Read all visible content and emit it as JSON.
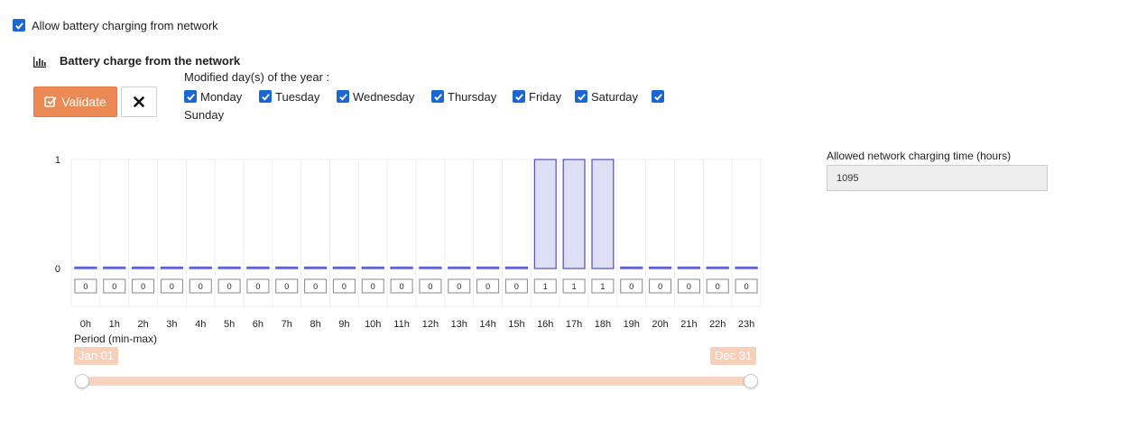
{
  "allow_charging": {
    "label": "Allow battery charging from network",
    "checked": true
  },
  "section": {
    "title": "Battery charge from the network",
    "icon": "bar-chart-icon"
  },
  "toolbar": {
    "validate_label": "Validate",
    "validate_icon": "check-square-icon",
    "cancel_icon": "close-icon"
  },
  "days": {
    "title": "Modified day(s) of the year :",
    "items": [
      {
        "label": "Monday",
        "checked": true
      },
      {
        "label": "Tuesday",
        "checked": true
      },
      {
        "label": "Wednesday",
        "checked": true
      },
      {
        "label": "Thursday",
        "checked": true
      },
      {
        "label": "Friday",
        "checked": true
      },
      {
        "label": "Saturday",
        "checked": true
      },
      {
        "label": "Sunday",
        "checked": true
      }
    ]
  },
  "chart_data": {
    "type": "bar",
    "categories": [
      "0h",
      "1h",
      "2h",
      "3h",
      "4h",
      "5h",
      "6h",
      "7h",
      "8h",
      "9h",
      "10h",
      "11h",
      "12h",
      "13h",
      "14h",
      "15h",
      "16h",
      "17h",
      "18h",
      "19h",
      "20h",
      "21h",
      "22h",
      "23h"
    ],
    "values": [
      0,
      0,
      0,
      0,
      0,
      0,
      0,
      0,
      0,
      0,
      0,
      0,
      0,
      0,
      0,
      0,
      1,
      1,
      1,
      0,
      0,
      0,
      0,
      0
    ],
    "ylim": [
      0,
      1
    ],
    "yticks": [
      "0",
      "1"
    ],
    "grid": true,
    "colors": {
      "bar_fill": "#dedff7",
      "bar_stroke": "#4f4fc9"
    }
  },
  "period": {
    "label": "Period (min-max)",
    "min_label": "Jan 01",
    "max_label": "Dec 31",
    "accent": "#f8cfb8"
  },
  "allowed": {
    "label": "Allowed network charging time (hours)",
    "value": "1095"
  }
}
